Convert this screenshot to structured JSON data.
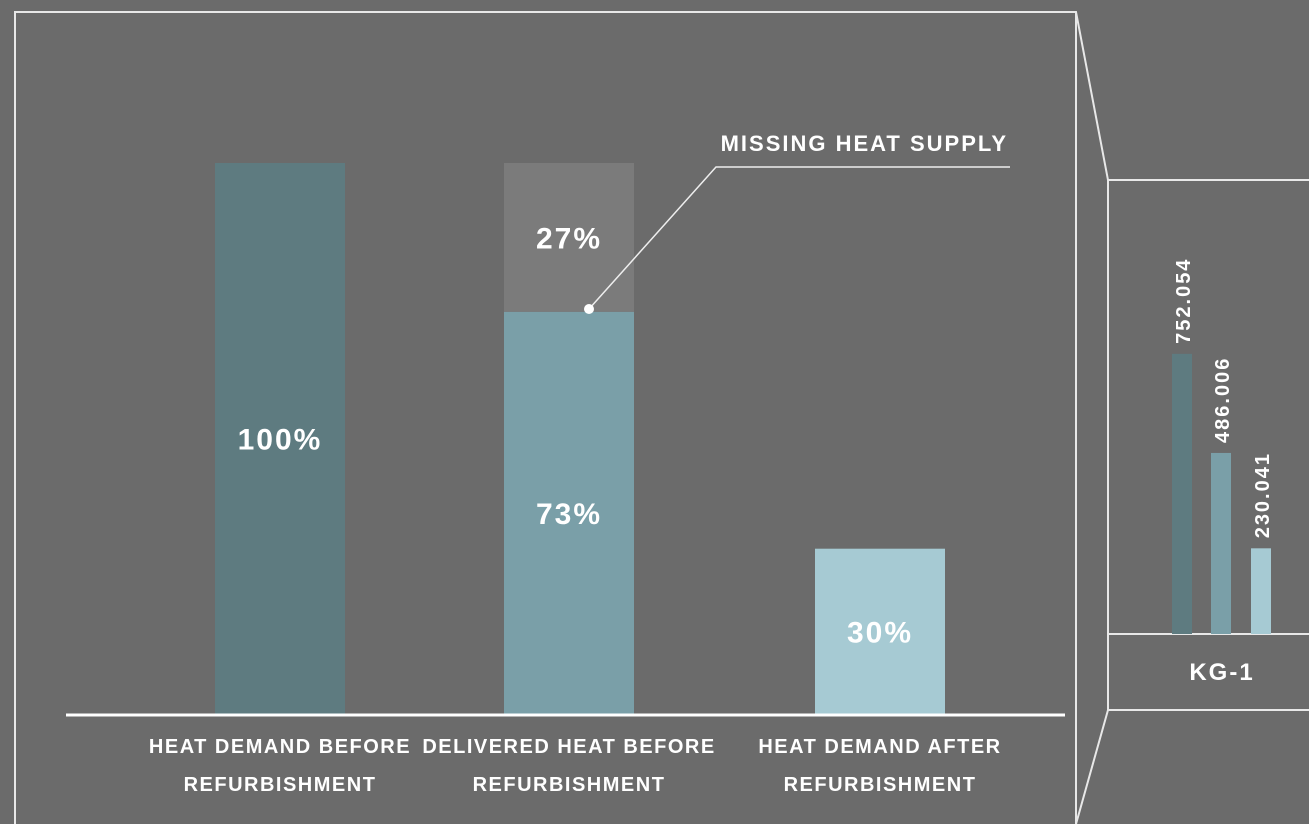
{
  "chart_data": [
    {
      "type": "stacked-bar",
      "categories": [
        "HEAT DEMAND BEFORE REFURBISHMENT",
        "DELIVERED HEAT BEFORE REFURBISHMENT",
        "HEAT DEMAND AFTER REFURBISHMENT"
      ],
      "series": [
        {
          "colors": [
            "#5e7b80",
            "#7a9fa8",
            "#a6cad3"
          ],
          "values": [
            100,
            73,
            30
          ],
          "value_labels": [
            "100%",
            "73%",
            "30%"
          ]
        },
        {
          "colors": [
            null,
            "#7b7b7b",
            null
          ],
          "values": [
            null,
            27,
            null
          ],
          "value_labels": [
            null,
            "27%",
            null
          ]
        }
      ],
      "ylim": [
        0,
        100
      ],
      "annotation": "MISSING HEAT SUPPLY"
    },
    {
      "type": "bar",
      "categories": [
        "KG-1"
      ],
      "series": [
        {
          "color": "#5e7b80",
          "values": [
            752.054
          ]
        },
        {
          "color": "#7a9fa8",
          "values": [
            486.006
          ]
        },
        {
          "color": "#a6cad3",
          "values": [
            230.041
          ]
        }
      ],
      "ylim": [
        0,
        800
      ]
    }
  ]
}
